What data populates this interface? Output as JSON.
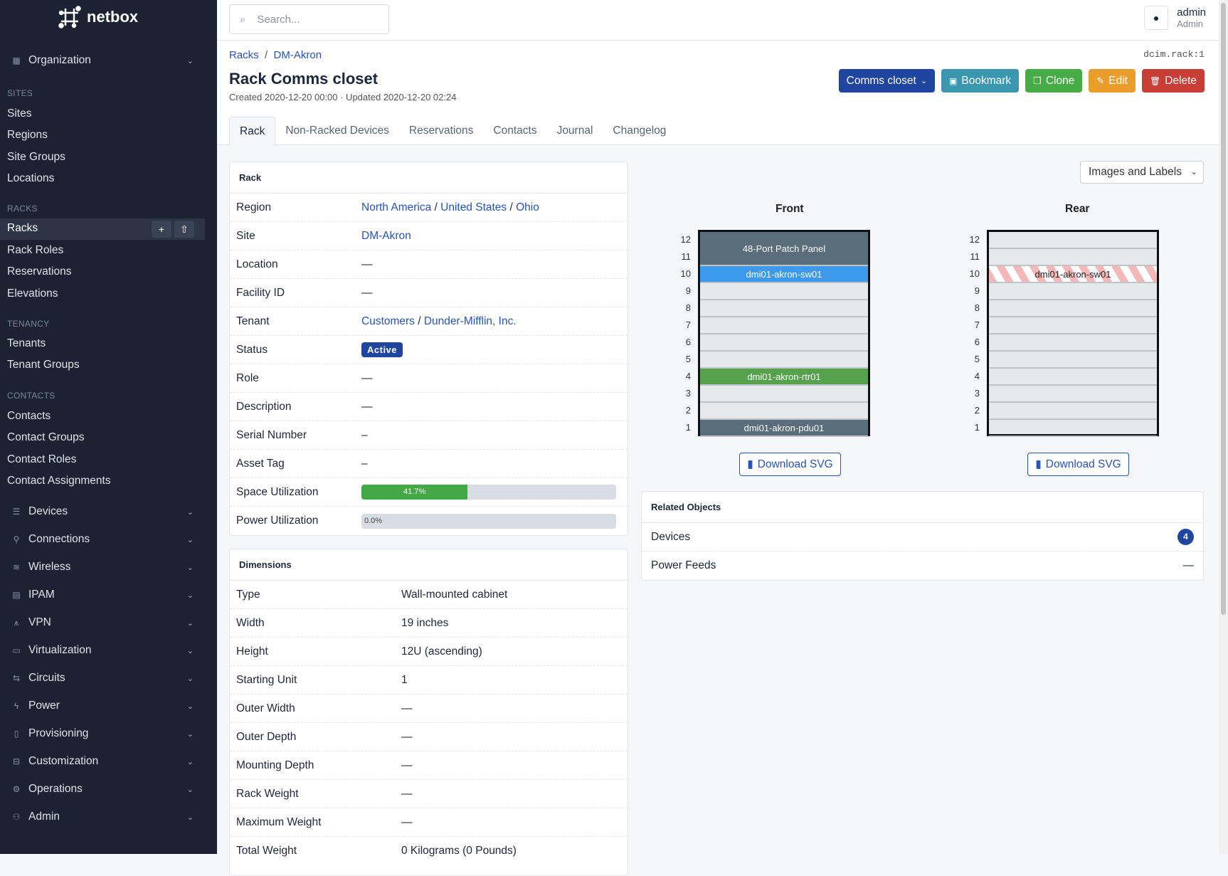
{
  "brand": "netbox",
  "sidebar": {
    "organization": "Organization",
    "sections": [
      {
        "header": "SITES",
        "items": [
          "Sites",
          "Regions",
          "Site Groups",
          "Locations"
        ]
      },
      {
        "header": "RACKS",
        "items": [
          "Racks",
          "Rack Roles",
          "Reservations",
          "Elevations"
        ]
      },
      {
        "header": "TENANCY",
        "items": [
          "Tenants",
          "Tenant Groups"
        ]
      },
      {
        "header": "CONTACTS",
        "items": [
          "Contacts",
          "Contact Groups",
          "Contact Roles",
          "Contact Assignments"
        ]
      }
    ],
    "active_item": "Racks",
    "add_icon": "+",
    "import_icon": "⇧",
    "groups": [
      {
        "label": "Devices",
        "icon": "server-icon"
      },
      {
        "label": "Connections",
        "icon": "plug-icon"
      },
      {
        "label": "Wireless",
        "icon": "wifi-icon"
      },
      {
        "label": "IPAM",
        "icon": "counter-icon"
      },
      {
        "label": "VPN",
        "icon": "tunnel-icon"
      },
      {
        "label": "Virtualization",
        "icon": "monitor-icon"
      },
      {
        "label": "Circuits",
        "icon": "transit-icon"
      },
      {
        "label": "Power",
        "icon": "flash-icon"
      },
      {
        "label": "Provisioning",
        "icon": "file-icon"
      },
      {
        "label": "Customization",
        "icon": "toolbox-icon"
      },
      {
        "label": "Operations",
        "icon": "cogs-icon"
      },
      {
        "label": "Admin",
        "icon": "users-icon"
      }
    ]
  },
  "topbar": {
    "search_placeholder": "Search...",
    "user": "admin",
    "role": "Admin"
  },
  "header": {
    "breadcrumbs": [
      "Racks",
      "DM-Akron"
    ],
    "object_id": "dcim.rack:1",
    "title": "Rack Comms closet",
    "meta": "Created 2020-12-20 00:00 · Updated 2020-12-20 02:24",
    "buttons": {
      "rack_select": "Comms closet",
      "bookmark": "Bookmark",
      "clone": "Clone",
      "edit": "Edit",
      "delete": "Delete"
    },
    "tabs": [
      "Rack",
      "Non-Racked Devices",
      "Reservations",
      "Contacts",
      "Journal",
      "Changelog"
    ]
  },
  "rack_card": {
    "title": "Rack",
    "region": [
      "North America",
      "United States",
      "Ohio"
    ],
    "site": "DM-Akron",
    "tenant": [
      "Customers",
      "Dunder-Mifflin, Inc."
    ],
    "status": "Active",
    "labels": {
      "region": "Region",
      "site": "Site",
      "location": "Location",
      "facility": "Facility ID",
      "tenant": "Tenant",
      "status": "Status",
      "role": "Role",
      "description": "Description",
      "serial": "Serial Number",
      "asset": "Asset Tag",
      "space": "Space Utilization",
      "power": "Power Utilization"
    },
    "location": "—",
    "facility": "—",
    "role": "—",
    "description": "—",
    "serial": "–",
    "asset": "–",
    "space_utilization": "41.7%",
    "space_pct": 41.7,
    "power_utilization": "0.0%",
    "power_pct": 0
  },
  "dimensions": {
    "title": "Dimensions",
    "rows": [
      {
        "k": "Type",
        "v": "Wall-mounted cabinet"
      },
      {
        "k": "Width",
        "v": "19 inches"
      },
      {
        "k": "Height",
        "v": "12U (ascending)"
      },
      {
        "k": "Starting Unit",
        "v": "1"
      },
      {
        "k": "Outer Width",
        "v": "—"
      },
      {
        "k": "Outer Depth",
        "v": "—"
      },
      {
        "k": "Mounting Depth",
        "v": "—"
      },
      {
        "k": "Rack Weight",
        "v": "—"
      },
      {
        "k": "Maximum Weight",
        "v": "—"
      },
      {
        "k": "Total Weight",
        "v": "0 Kilograms (0 Pounds)"
      }
    ]
  },
  "elevation": {
    "view_select": "Images and Labels",
    "front_title": "Front",
    "rear_title": "Rear",
    "units": [
      "12",
      "11",
      "10",
      "9",
      "8",
      "7",
      "6",
      "5",
      "4",
      "3",
      "2",
      "1"
    ],
    "front_devices": [
      {
        "name": "48-Port Patch Panel",
        "position": 11,
        "height": 2,
        "color": "#5a6d7b"
      },
      {
        "name": "dmi01-akron-sw01",
        "position": 10,
        "height": 1,
        "color": "#3c99ec"
      },
      {
        "name": "dmi01-akron-rtr01",
        "position": 4,
        "height": 1,
        "color": "#54a24b"
      },
      {
        "name": "dmi01-akron-pdu01",
        "position": 1,
        "height": 1,
        "color": "#5a6d7b"
      }
    ],
    "rear_devices": [
      {
        "name": "dmi01-akron-sw01",
        "position": 10,
        "height": 1,
        "occupied_from_front": true
      }
    ],
    "download": "Download SVG"
  },
  "related": {
    "title": "Related Objects",
    "items": [
      {
        "label": "Devices",
        "count": "4"
      },
      {
        "label": "Power Feeds",
        "count": "—"
      }
    ]
  }
}
